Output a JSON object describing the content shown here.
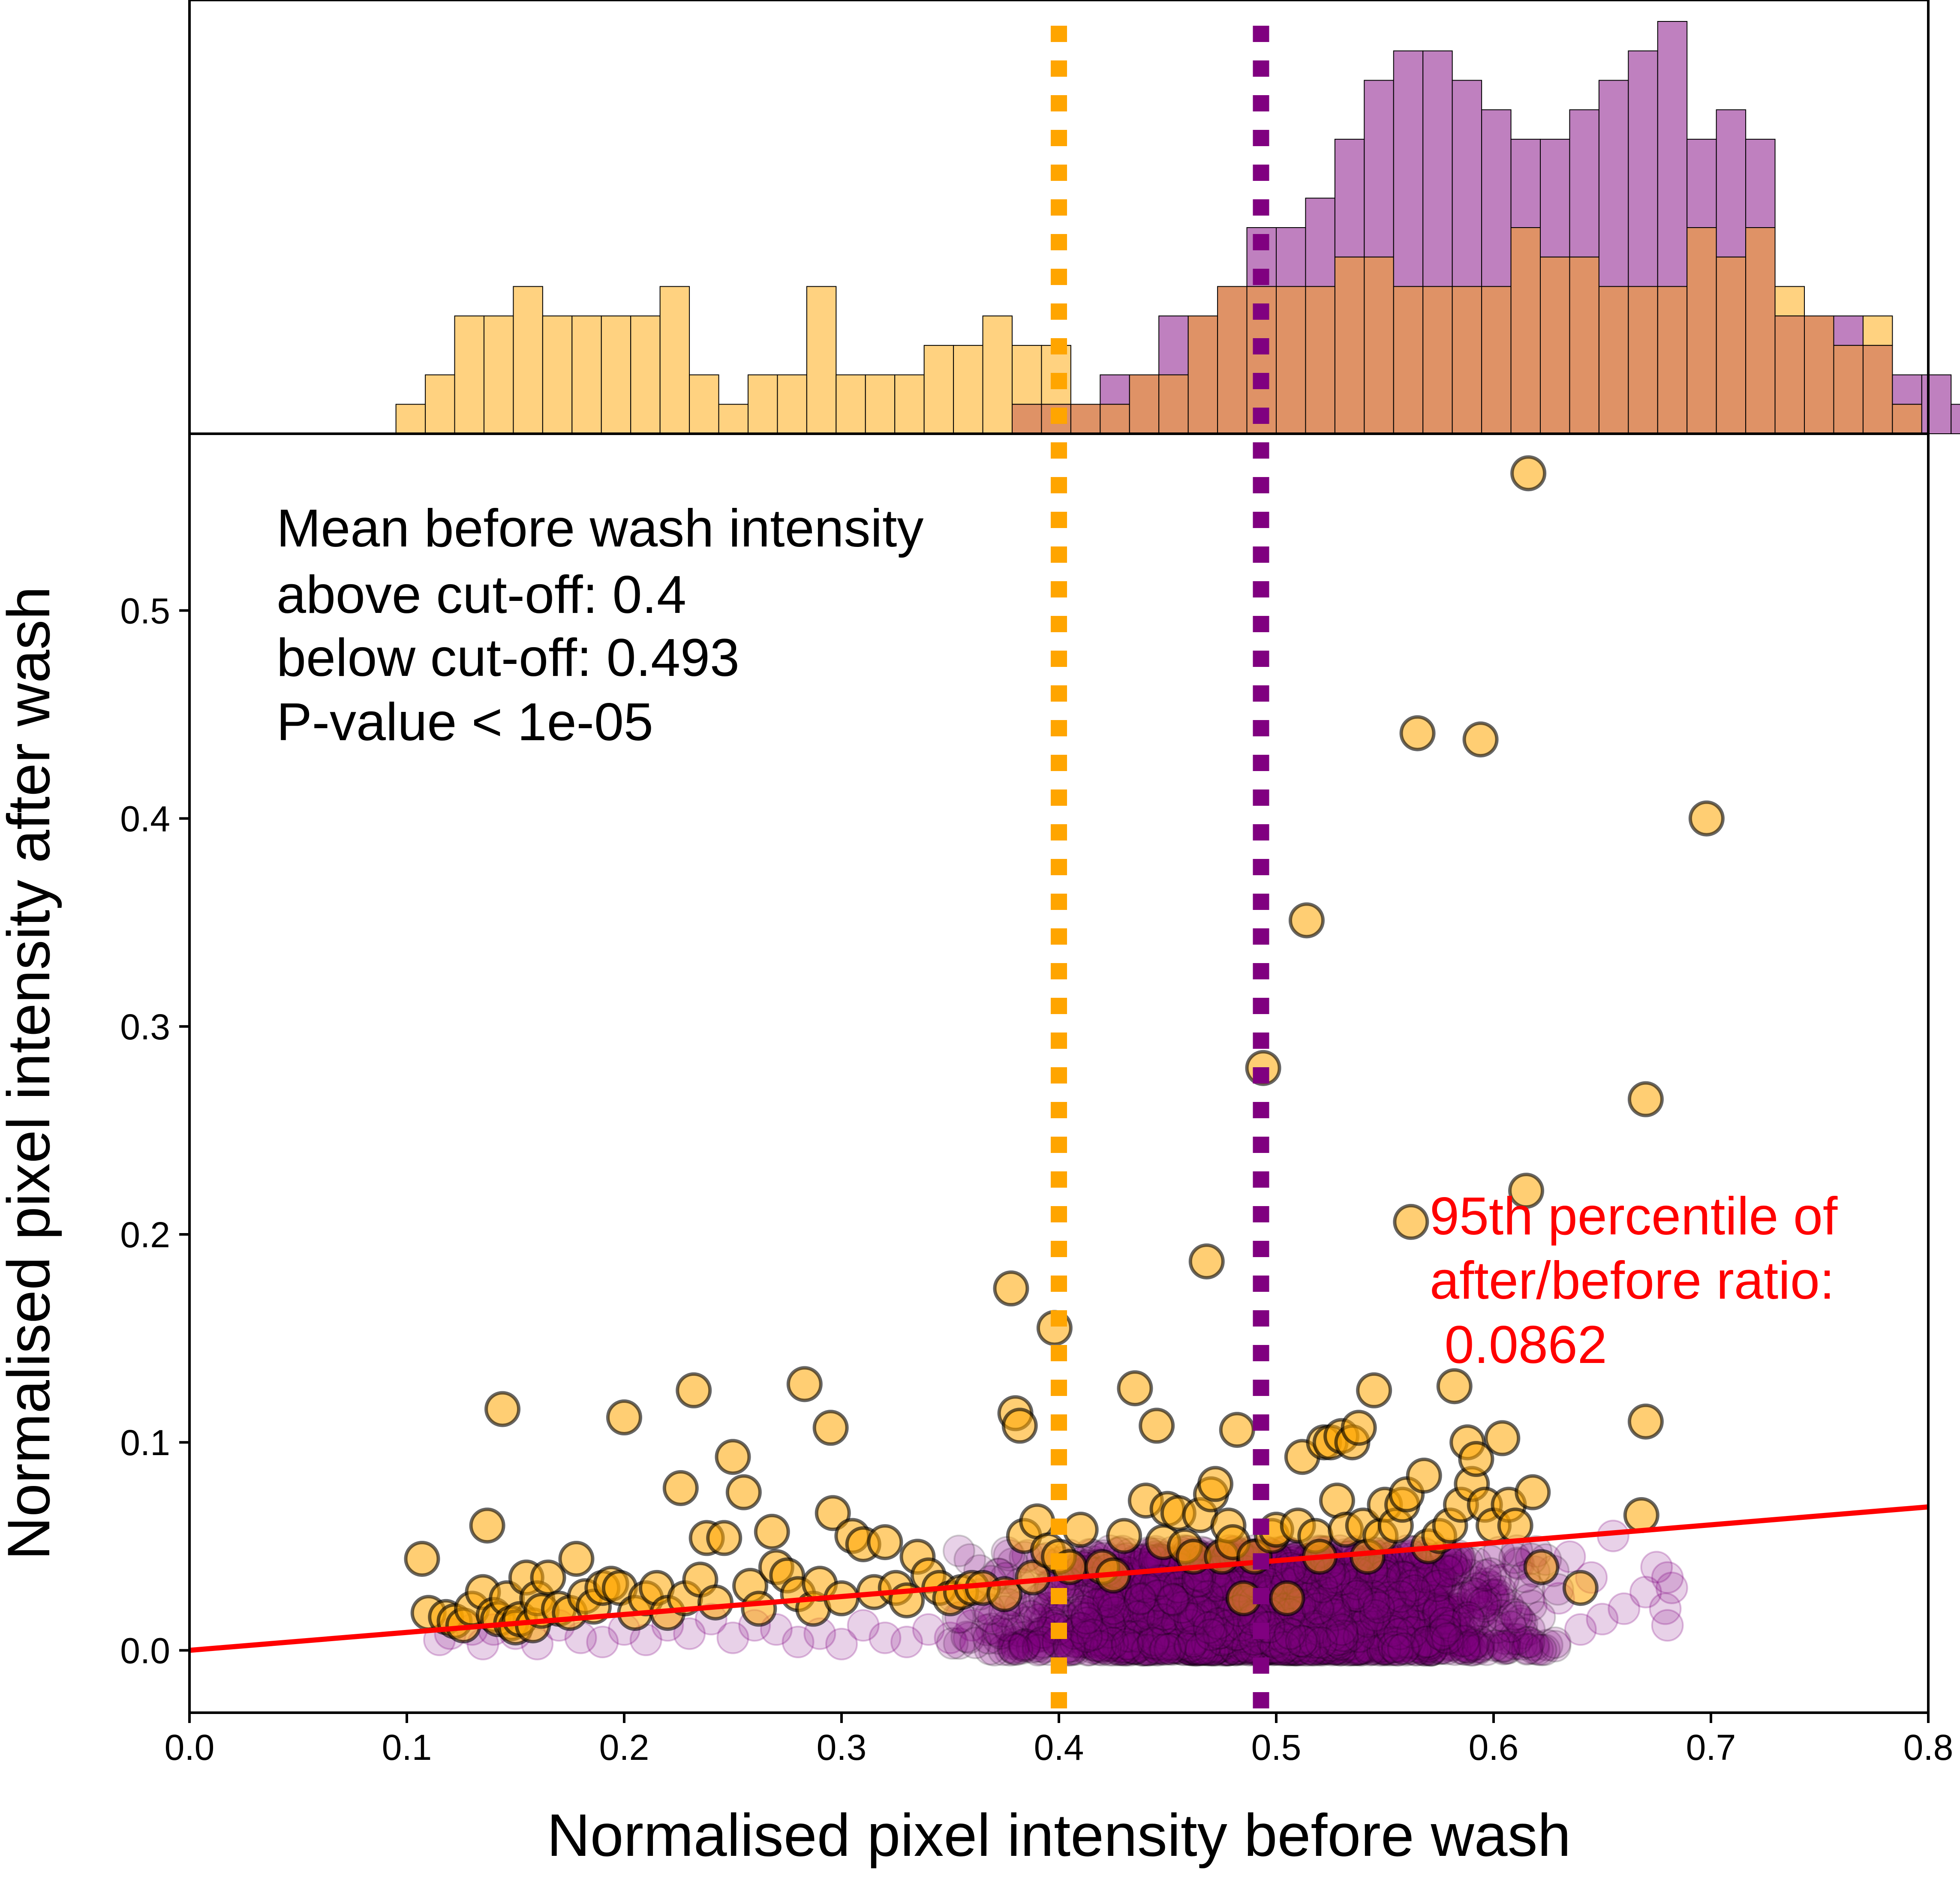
{
  "chart_data": {
    "type": "scatter",
    "xlabel": "Normalised pixel intensity before wash",
    "ylabel": "Normalised pixel intensity after wash",
    "xlim": [
      0.0,
      0.8
    ],
    "ylim": [
      -0.03,
      0.585
    ],
    "x_ticks": [
      "0.0",
      "0.1",
      "0.2",
      "0.3",
      "0.4",
      "0.5",
      "0.6",
      "0.7",
      "0.8"
    ],
    "y_ticks": [
      "0.0",
      "0.1",
      "0.2",
      "0.3",
      "0.4",
      "0.5"
    ],
    "grid": false,
    "colors": {
      "above": "#ffa500",
      "below": "#800080",
      "above_hist_fill": "#ffd280",
      "below_hist_fill": "#bf80bf",
      "overlap_hist_fill": "#df9266",
      "fit_line": "#ff0000"
    },
    "annotation": {
      "lines": [
        "Mean before wash intensity",
        "above cut-off: 0.4",
        "below cut-off: 0.493",
        "P-value < 1e-05"
      ]
    },
    "percentile_label": {
      "lines": [
        "95th percentile of",
        "after/before ratio:",
        " 0.0862"
      ],
      "value": 0.0862
    },
    "mean_lines": [
      {
        "group": "above",
        "x": 0.4
      },
      {
        "group": "below",
        "x": 0.493
      }
    ],
    "histogram": {
      "bin_start": 0.095,
      "bin_width": 0.0135,
      "above_counts": [
        1,
        2,
        4,
        4,
        5,
        4,
        4,
        4,
        4,
        5,
        2,
        1,
        2,
        2,
        5,
        2,
        2,
        2,
        3,
        3,
        4,
        3,
        3,
        1,
        1,
        2,
        2,
        4,
        5,
        5,
        5,
        5,
        6,
        6,
        5,
        5,
        5,
        5,
        7,
        6,
        6,
        5,
        5,
        5,
        7,
        6,
        7,
        5,
        4,
        3,
        4,
        1,
        0,
        0,
        0,
        4,
        0,
        1
      ],
      "below_counts": [
        0,
        0,
        0,
        0,
        0,
        0,
        0,
        0,
        0,
        0,
        0,
        0,
        0,
        0,
        0,
        0,
        0,
        0,
        0,
        0,
        0,
        1,
        1,
        1,
        2,
        2,
        4,
        4,
        5,
        7,
        7,
        8,
        10,
        12,
        13,
        13,
        12,
        11,
        10,
        10,
        11,
        12,
        13,
        14,
        10,
        11,
        10,
        4,
        4,
        4,
        3,
        2,
        2,
        1,
        1,
        1,
        0,
        0
      ]
    },
    "series": [
      {
        "name": "above",
        "points": [
          [
            0.107,
            0.044
          ],
          [
            0.11,
            0.018
          ],
          [
            0.118,
            0.016
          ],
          [
            0.122,
            0.014
          ],
          [
            0.126,
            0.012
          ],
          [
            0.13,
            0.02
          ],
          [
            0.135,
            0.028
          ],
          [
            0.137,
            0.06
          ],
          [
            0.14,
            0.017
          ],
          [
            0.142,
            0.015
          ],
          [
            0.144,
            0.116
          ],
          [
            0.146,
            0.025
          ],
          [
            0.148,
            0.013
          ],
          [
            0.15,
            0.011
          ],
          [
            0.152,
            0.015
          ],
          [
            0.155,
            0.035
          ],
          [
            0.158,
            0.012
          ],
          [
            0.16,
            0.025
          ],
          [
            0.162,
            0.019
          ],
          [
            0.165,
            0.035
          ],
          [
            0.17,
            0.02
          ],
          [
            0.175,
            0.018
          ],
          [
            0.178,
            0.044
          ],
          [
            0.182,
            0.026
          ],
          [
            0.186,
            0.021
          ],
          [
            0.19,
            0.03
          ],
          [
            0.194,
            0.032
          ],
          [
            0.198,
            0.03
          ],
          [
            0.2,
            0.112
          ],
          [
            0.205,
            0.018
          ],
          [
            0.21,
            0.025
          ],
          [
            0.215,
            0.03
          ],
          [
            0.22,
            0.018
          ],
          [
            0.226,
            0.078
          ],
          [
            0.228,
            0.025
          ],
          [
            0.232,
            0.125
          ],
          [
            0.235,
            0.034
          ],
          [
            0.238,
            0.054
          ],
          [
            0.242,
            0.023
          ],
          [
            0.246,
            0.054
          ],
          [
            0.25,
            0.093
          ],
          [
            0.255,
            0.076
          ],
          [
            0.258,
            0.031
          ],
          [
            0.262,
            0.02
          ],
          [
            0.268,
            0.057
          ],
          [
            0.27,
            0.04
          ],
          [
            0.275,
            0.036
          ],
          [
            0.28,
            0.027
          ],
          [
            0.283,
            0.128
          ],
          [
            0.287,
            0.02
          ],
          [
            0.29,
            0.032
          ],
          [
            0.295,
            0.107
          ],
          [
            0.296,
            0.066
          ],
          [
            0.3,
            0.025
          ],
          [
            0.305,
            0.055
          ],
          [
            0.31,
            0.051
          ],
          [
            0.315,
            0.028
          ],
          [
            0.32,
            0.052
          ],
          [
            0.325,
            0.03
          ],
          [
            0.33,
            0.024
          ],
          [
            0.335,
            0.045
          ],
          [
            0.34,
            0.036
          ],
          [
            0.345,
            0.03
          ],
          [
            0.35,
            0.025
          ],
          [
            0.355,
            0.028
          ],
          [
            0.36,
            0.03
          ],
          [
            0.365,
            0.03
          ],
          [
            0.375,
            0.027
          ],
          [
            0.378,
            0.174
          ],
          [
            0.38,
            0.114
          ],
          [
            0.382,
            0.108
          ],
          [
            0.384,
            0.055
          ],
          [
            0.388,
            0.035
          ],
          [
            0.39,
            0.062
          ],
          [
            0.395,
            0.048
          ],
          [
            0.398,
            0.155
          ],
          [
            0.4,
            0.045
          ],
          [
            0.405,
            0.04
          ],
          [
            0.41,
            0.058
          ],
          [
            0.42,
            0.04
          ],
          [
            0.425,
            0.036
          ],
          [
            0.43,
            0.055
          ],
          [
            0.435,
            0.126
          ],
          [
            0.44,
            0.072
          ],
          [
            0.445,
            0.108
          ],
          [
            0.448,
            0.052
          ],
          [
            0.45,
            0.068
          ],
          [
            0.455,
            0.066
          ],
          [
            0.458,
            0.05
          ],
          [
            0.462,
            0.045
          ],
          [
            0.465,
            0.065
          ],
          [
            0.468,
            0.187
          ],
          [
            0.47,
            0.075
          ],
          [
            0.472,
            0.08
          ],
          [
            0.475,
            0.045
          ],
          [
            0.478,
            0.06
          ],
          [
            0.48,
            0.052
          ],
          [
            0.482,
            0.106
          ],
          [
            0.485,
            0.025
          ],
          [
            0.49,
            0.045
          ],
          [
            0.494,
            0.28
          ],
          [
            0.498,
            0.055
          ],
          [
            0.5,
            0.058
          ],
          [
            0.505,
            0.025
          ],
          [
            0.51,
            0.06
          ],
          [
            0.512,
            0.093
          ],
          [
            0.514,
            0.351
          ],
          [
            0.518,
            0.055
          ],
          [
            0.52,
            0.045
          ],
          [
            0.522,
            0.1
          ],
          [
            0.525,
            0.1
          ],
          [
            0.528,
            0.072
          ],
          [
            0.53,
            0.103
          ],
          [
            0.532,
            0.058
          ],
          [
            0.535,
            0.1
          ],
          [
            0.538,
            0.107
          ],
          [
            0.54,
            0.06
          ],
          [
            0.542,
            0.045
          ],
          [
            0.545,
            0.125
          ],
          [
            0.548,
            0.055
          ],
          [
            0.55,
            0.07
          ],
          [
            0.555,
            0.06
          ],
          [
            0.558,
            0.07
          ],
          [
            0.56,
            0.075
          ],
          [
            0.562,
            0.206
          ],
          [
            0.565,
            0.441
          ],
          [
            0.568,
            0.084
          ],
          [
            0.57,
            0.05
          ],
          [
            0.575,
            0.055
          ],
          [
            0.58,
            0.06
          ],
          [
            0.582,
            0.127
          ],
          [
            0.585,
            0.07
          ],
          [
            0.588,
            0.1
          ],
          [
            0.59,
            0.08
          ],
          [
            0.592,
            0.092
          ],
          [
            0.594,
            0.438
          ],
          [
            0.596,
            0.07
          ],
          [
            0.6,
            0.06
          ],
          [
            0.604,
            0.102
          ],
          [
            0.607,
            0.07
          ],
          [
            0.61,
            0.06
          ],
          [
            0.615,
            0.221
          ],
          [
            0.616,
            0.566
          ],
          [
            0.618,
            0.076
          ],
          [
            0.622,
            0.04
          ],
          [
            0.64,
            0.03
          ],
          [
            0.668,
            0.065
          ],
          [
            0.67,
            0.265
          ],
          [
            0.67,
            0.11
          ],
          [
            0.698,
            0.4
          ]
        ]
      },
      {
        "name": "below",
        "points": [
          [
            0.115,
            0.005
          ],
          [
            0.12,
            0.008
          ],
          [
            0.13,
            0.01
          ],
          [
            0.135,
            0.003
          ],
          [
            0.14,
            0.01
          ],
          [
            0.15,
            0.008
          ],
          [
            0.16,
            0.003
          ],
          [
            0.17,
            0.012
          ],
          [
            0.18,
            0.006
          ],
          [
            0.19,
            0.004
          ],
          [
            0.2,
            0.01
          ],
          [
            0.21,
            0.005
          ],
          [
            0.22,
            0.012
          ],
          [
            0.23,
            0.008
          ],
          [
            0.24,
            0.015
          ],
          [
            0.25,
            0.006
          ],
          [
            0.26,
            0.012
          ],
          [
            0.27,
            0.01
          ],
          [
            0.28,
            0.004
          ],
          [
            0.29,
            0.008
          ],
          [
            0.3,
            0.003
          ],
          [
            0.31,
            0.012
          ],
          [
            0.32,
            0.006
          ],
          [
            0.33,
            0.004
          ],
          [
            0.34,
            0.01
          ],
          [
            0.35,
            0.006
          ],
          [
            0.36,
            0.012
          ],
          [
            0.68,
            0.035
          ],
          [
            0.682,
            0.03
          ],
          [
            0.68,
            0.012
          ],
          [
            0.679,
            0.02
          ],
          [
            0.675,
            0.04
          ],
          [
            0.67,
            0.028
          ],
          [
            0.66,
            0.02
          ],
          [
            0.655,
            0.055
          ],
          [
            0.65,
            0.015
          ],
          [
            0.645,
            0.035
          ],
          [
            0.64,
            0.01
          ],
          [
            0.635,
            0.045
          ],
          [
            0.63,
            0.025
          ]
        ],
        "cloud": {
          "count": 2600,
          "x_mean": 0.495,
          "x_sd": 0.055,
          "x_min": 0.35,
          "x_max": 0.63,
          "y_max": 0.048
        }
      }
    ],
    "fit_line": {
      "slope": 0.0862,
      "intercept": 0.0
    }
  }
}
